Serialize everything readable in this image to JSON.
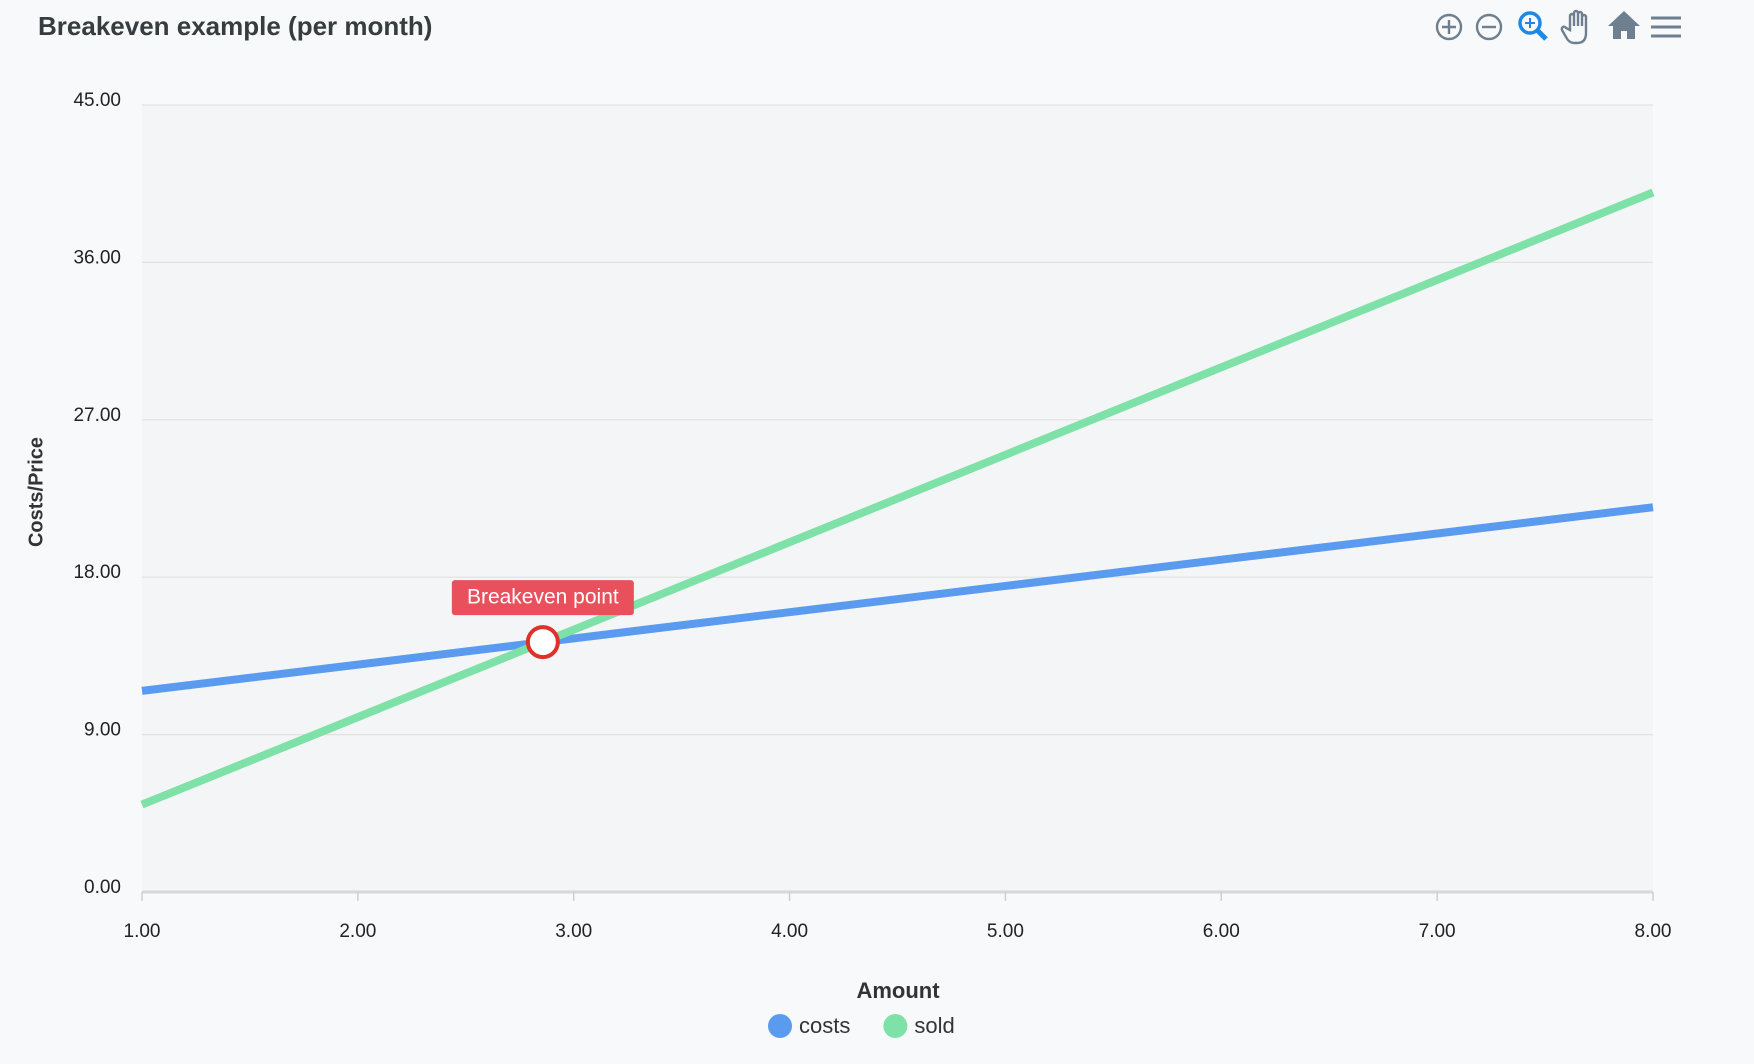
{
  "chart_data": {
    "type": "line",
    "title": "Breakeven example (per month)",
    "x_label": "Amount",
    "y_label": "Costs/Price",
    "x": [
      1,
      2,
      3,
      4,
      5,
      6,
      7,
      8
    ],
    "series": [
      {
        "name": "costs",
        "color": "#5a9bf0",
        "values": [
          11.5,
          13,
          14.5,
          16,
          17.5,
          19,
          20.5,
          22
        ]
      },
      {
        "name": "sold",
        "color": "#7ee2a8",
        "values": [
          5,
          10,
          15,
          20,
          25,
          30,
          35,
          40
        ]
      }
    ],
    "annotation": {
      "text": "Breakeven point",
      "x": 2.857,
      "y": 14.29,
      "color": "#e8505b"
    },
    "xlim": [
      1,
      8
    ],
    "ylim": [
      0,
      45
    ],
    "xticks": [
      {
        "value": 1,
        "label": "1.00"
      },
      {
        "value": 2,
        "label": "2.00"
      },
      {
        "value": 3,
        "label": "3.00"
      },
      {
        "value": 4,
        "label": "4.00"
      },
      {
        "value": 5,
        "label": "5.00"
      },
      {
        "value": 6,
        "label": "6.00"
      },
      {
        "value": 7,
        "label": "7.00"
      },
      {
        "value": 8,
        "label": "8.00"
      }
    ],
    "yticks": [
      {
        "value": 0,
        "label": "0.00"
      },
      {
        "value": 9,
        "label": "9.00"
      },
      {
        "value": 18,
        "label": "18.00"
      },
      {
        "value": 27,
        "label": "27.00"
      },
      {
        "value": 36,
        "label": "36.00"
      },
      {
        "value": 45,
        "label": "45.00"
      }
    ],
    "grid": true
  }
}
